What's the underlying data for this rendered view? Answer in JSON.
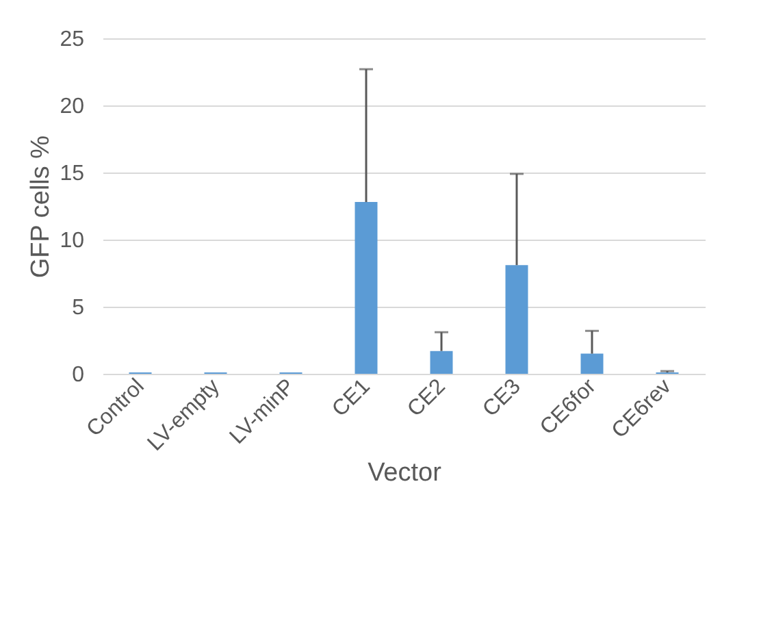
{
  "chart_data": {
    "type": "bar",
    "xlabel": "Vector",
    "ylabel": "GFP cells %",
    "categories": [
      "Control",
      "LV-empty",
      "LV-minP",
      "CE1",
      "CE2",
      "CE3",
      "CE6for",
      "CE6rev"
    ],
    "values": [
      0.1,
      0.1,
      0.1,
      12.8,
      1.7,
      8.1,
      1.5,
      0.1
    ],
    "errors": [
      null,
      null,
      null,
      9.9,
      1.4,
      6.8,
      1.7,
      0.1
    ],
    "color": "#5b9bd5",
    "ylim": [
      0,
      25
    ],
    "yticks": [
      0,
      5,
      10,
      15,
      20,
      25
    ],
    "grid": "y"
  }
}
